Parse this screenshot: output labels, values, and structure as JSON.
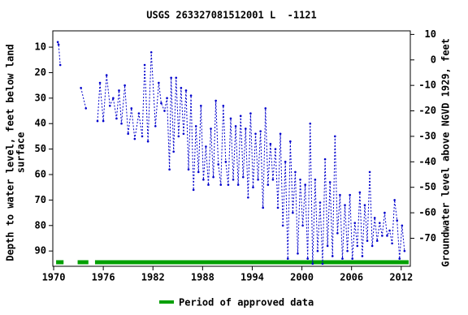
{
  "chart_data": {
    "type": "line",
    "title": "USGS 263327081512001 L  -1121",
    "ylabel_lines": [
      "Depth to water level, feet below land",
      "surface"
    ],
    "y2label": "Groundwater level above NGVD 1929, feet",
    "xlim": [
      1969.9,
      2013.1
    ],
    "xticks": [
      1970,
      1976,
      1982,
      1988,
      1994,
      2000,
      2006,
      2012
    ],
    "ylim": [
      96,
      3.6
    ],
    "yticks": [
      10,
      20,
      30,
      40,
      50,
      60,
      70,
      80,
      90
    ],
    "y2lim": [
      -81,
      11.4
    ],
    "y2ticks": [
      10,
      0,
      -10,
      -20,
      -30,
      -40,
      -50,
      -60,
      -70
    ],
    "series": [
      {
        "color": "#0000cc",
        "x": [
          1970.5,
          1970.6,
          1970.8,
          null,
          1973.3,
          1973.9,
          null,
          1975.3,
          1975.6,
          1976,
          1976.4,
          1976.8,
          1977.2,
          1977.6,
          1977.9,
          1978.2,
          1978.6,
          1979,
          1979.4,
          1979.8,
          1980.3,
          1980.7,
          1981,
          1981.4,
          1981.8,
          1982.3,
          1982.7,
          1983,
          1983.4,
          1983.7,
          1984,
          1984.2,
          1984.5,
          1984.8,
          1985.1,
          1985.4,
          1985.7,
          1986,
          1986.3,
          1986.6,
          1986.9,
          1987.2,
          1987.5,
          1987.8,
          1988.1,
          1988.4,
          1988.7,
          1989,
          1989.3,
          1989.6,
          1989.9,
          1990.2,
          1990.5,
          1990.8,
          1991.1,
          1991.4,
          1991.7,
          1992,
          1992.3,
          1992.6,
          1992.9,
          1993.2,
          1993.5,
          1993.8,
          1994.1,
          1994.4,
          1994.7,
          1995,
          1995.3,
          1995.6,
          1995.9,
          1996.2,
          1996.5,
          1996.8,
          1997.1,
          1997.4,
          1997.7,
          1998,
          1998.3,
          1998.6,
          1998.9,
          1999.2,
          1999.5,
          1999.8,
          2000.1,
          2000.4,
          2000.7,
          2001,
          2001.3,
          2001.6,
          2001.9,
          2002.2,
          2002.5,
          2002.8,
          2003.1,
          2003.4,
          2003.7,
          2004,
          2004.3,
          2004.6,
          2004.9,
          2005.2,
          2005.5,
          2005.8,
          2006.1,
          2006.4,
          2006.7,
          2007,
          2007.3,
          2007.6,
          2007.9,
          2008.2,
          2008.5,
          2008.8,
          2009.1,
          2009.4,
          2009.7,
          2010,
          2010.3,
          2010.6,
          2010.9,
          2011.2,
          2011.5,
          2011.8,
          2012.1,
          2012.4
        ],
        "values": [
          8,
          9,
          17,
          null,
          26,
          34,
          null,
          39,
          24,
          39,
          21,
          33,
          30,
          38,
          27,
          40,
          25,
          44,
          34,
          46,
          36,
          45,
          17,
          47,
          12,
          41,
          24,
          32,
          35,
          30,
          58,
          22,
          51,
          22,
          45,
          26,
          44,
          27,
          58,
          29,
          66,
          41,
          59,
          33,
          62,
          49,
          64,
          42,
          61,
          31,
          56,
          64,
          33,
          55,
          64,
          38,
          62,
          41,
          64,
          37,
          61,
          42,
          69,
          36,
          65,
          44,
          62,
          43,
          73,
          34,
          64,
          48,
          62,
          50,
          73,
          44,
          80,
          55,
          93,
          47,
          75,
          59,
          91,
          62,
          80,
          64,
          93,
          40,
          95,
          62,
          90,
          71,
          95,
          54,
          88,
          63,
          92,
          45,
          83,
          68,
          93,
          72,
          90,
          68,
          93,
          79,
          88,
          67,
          92,
          72,
          86,
          59,
          88,
          77,
          86,
          79,
          84,
          75,
          84,
          82,
          87,
          70,
          78,
          93,
          80,
          90
        ]
      }
    ],
    "approved_periods": [
      [
        1970.3,
        1971.2
      ],
      [
        1972.9,
        1974.2
      ],
      [
        1975,
        2012.9
      ]
    ],
    "approved_color": "#00a000",
    "legend": "Period of approved data"
  }
}
